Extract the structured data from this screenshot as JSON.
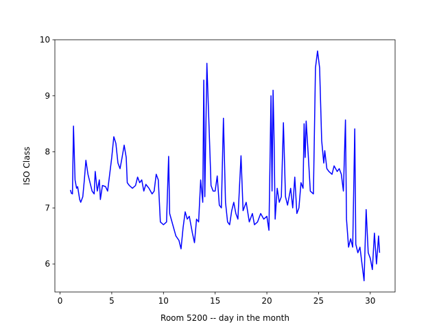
{
  "chart_data": {
    "type": "line",
    "xlabel": "Room 5200 -- day in the month",
    "ylabel": "ISO Class",
    "xlim": [
      -0.5,
      32.4
    ],
    "xticks": [
      0,
      5,
      10,
      15,
      20,
      25,
      30
    ],
    "ylim": [
      5.5,
      10
    ],
    "yticks": [
      6,
      7,
      8,
      9,
      10
    ],
    "series": [
      {
        "name": "ISO Class",
        "color": "#0000ff",
        "x": [
          1.0,
          1.1,
          1.2,
          1.3,
          1.45,
          1.6,
          1.7,
          1.9,
          2.0,
          2.2,
          2.35,
          2.5,
          2.7,
          2.9,
          3.1,
          3.3,
          3.4,
          3.6,
          3.8,
          3.9,
          4.1,
          4.4,
          4.6,
          4.8,
          5.0,
          5.2,
          5.4,
          5.6,
          5.8,
          6.0,
          6.2,
          6.4,
          6.5,
          6.7,
          7.0,
          7.3,
          7.5,
          7.7,
          7.9,
          8.1,
          8.3,
          8.6,
          8.9,
          9.1,
          9.3,
          9.5,
          9.7,
          10.0,
          10.3,
          10.5,
          10.6,
          10.9,
          11.2,
          11.5,
          11.7,
          11.9,
          12.1,
          12.3,
          12.5,
          12.8,
          13.0,
          13.2,
          13.4,
          13.6,
          13.8,
          13.9,
          14.0,
          14.2,
          14.4,
          14.6,
          14.8,
          15.0,
          15.2,
          15.4,
          15.6,
          15.8,
          16.0,
          16.2,
          16.4,
          16.6,
          16.8,
          17.0,
          17.2,
          17.5,
          17.7,
          18.0,
          18.3,
          18.6,
          18.8,
          19.1,
          19.4,
          19.7,
          20.0,
          20.2,
          20.4,
          20.5,
          20.6,
          20.7,
          20.8,
          21.0,
          21.2,
          21.4,
          21.6,
          21.8,
          22.0,
          22.3,
          22.5,
          22.7,
          22.9,
          23.1,
          23.3,
          23.5,
          23.6,
          23.7,
          23.8,
          24.0,
          24.2,
          24.5,
          24.7,
          24.9,
          25.1,
          25.3,
          25.5,
          25.6,
          25.8,
          26.0,
          26.3,
          26.5,
          26.8,
          27.0,
          27.2,
          27.4,
          27.6,
          27.7,
          27.9,
          28.1,
          28.3,
          28.5,
          28.6,
          28.8,
          29.0,
          29.2,
          29.4,
          29.6,
          29.8,
          30.0,
          30.2,
          30.4,
          30.6,
          30.8,
          30.9
        ],
        "values": [
          7.32,
          7.26,
          7.25,
          8.46,
          7.5,
          7.35,
          7.38,
          7.15,
          7.1,
          7.2,
          7.5,
          7.85,
          7.6,
          7.45,
          7.3,
          7.25,
          7.65,
          7.3,
          7.5,
          7.15,
          7.4,
          7.38,
          7.3,
          7.6,
          7.9,
          8.27,
          8.15,
          7.8,
          7.7,
          7.9,
          8.12,
          7.9,
          7.45,
          7.4,
          7.35,
          7.4,
          7.55,
          7.45,
          7.5,
          7.3,
          7.42,
          7.35,
          7.25,
          7.3,
          7.6,
          7.5,
          6.75,
          6.7,
          6.75,
          7.92,
          6.9,
          6.7,
          6.5,
          6.42,
          6.27,
          6.65,
          6.93,
          6.8,
          6.85,
          6.55,
          6.38,
          6.8,
          6.75,
          7.5,
          7.1,
          9.28,
          7.2,
          9.58,
          8.5,
          7.4,
          7.3,
          7.3,
          7.57,
          7.05,
          7.0,
          8.6,
          7.1,
          6.75,
          6.7,
          6.95,
          7.1,
          6.9,
          6.8,
          7.93,
          6.95,
          7.1,
          6.75,
          6.9,
          6.7,
          6.75,
          6.9,
          6.8,
          6.85,
          6.6,
          9.0,
          7.3,
          9.1,
          8.2,
          6.8,
          7.35,
          7.1,
          7.2,
          8.52,
          7.2,
          7.05,
          7.35,
          7.0,
          7.55,
          6.9,
          7.0,
          7.45,
          7.35,
          8.5,
          7.9,
          8.55,
          7.95,
          7.3,
          7.25,
          9.5,
          9.8,
          9.5,
          8.2,
          7.8,
          8.02,
          7.7,
          7.65,
          7.6,
          7.75,
          7.65,
          7.7,
          7.6,
          7.3,
          8.57,
          6.8,
          6.3,
          6.45,
          6.3,
          8.41,
          6.35,
          6.2,
          6.3,
          6.0,
          5.7,
          6.97,
          6.2,
          6.1,
          5.9,
          6.55,
          6.0,
          6.5,
          6.2
        ]
      }
    ]
  }
}
